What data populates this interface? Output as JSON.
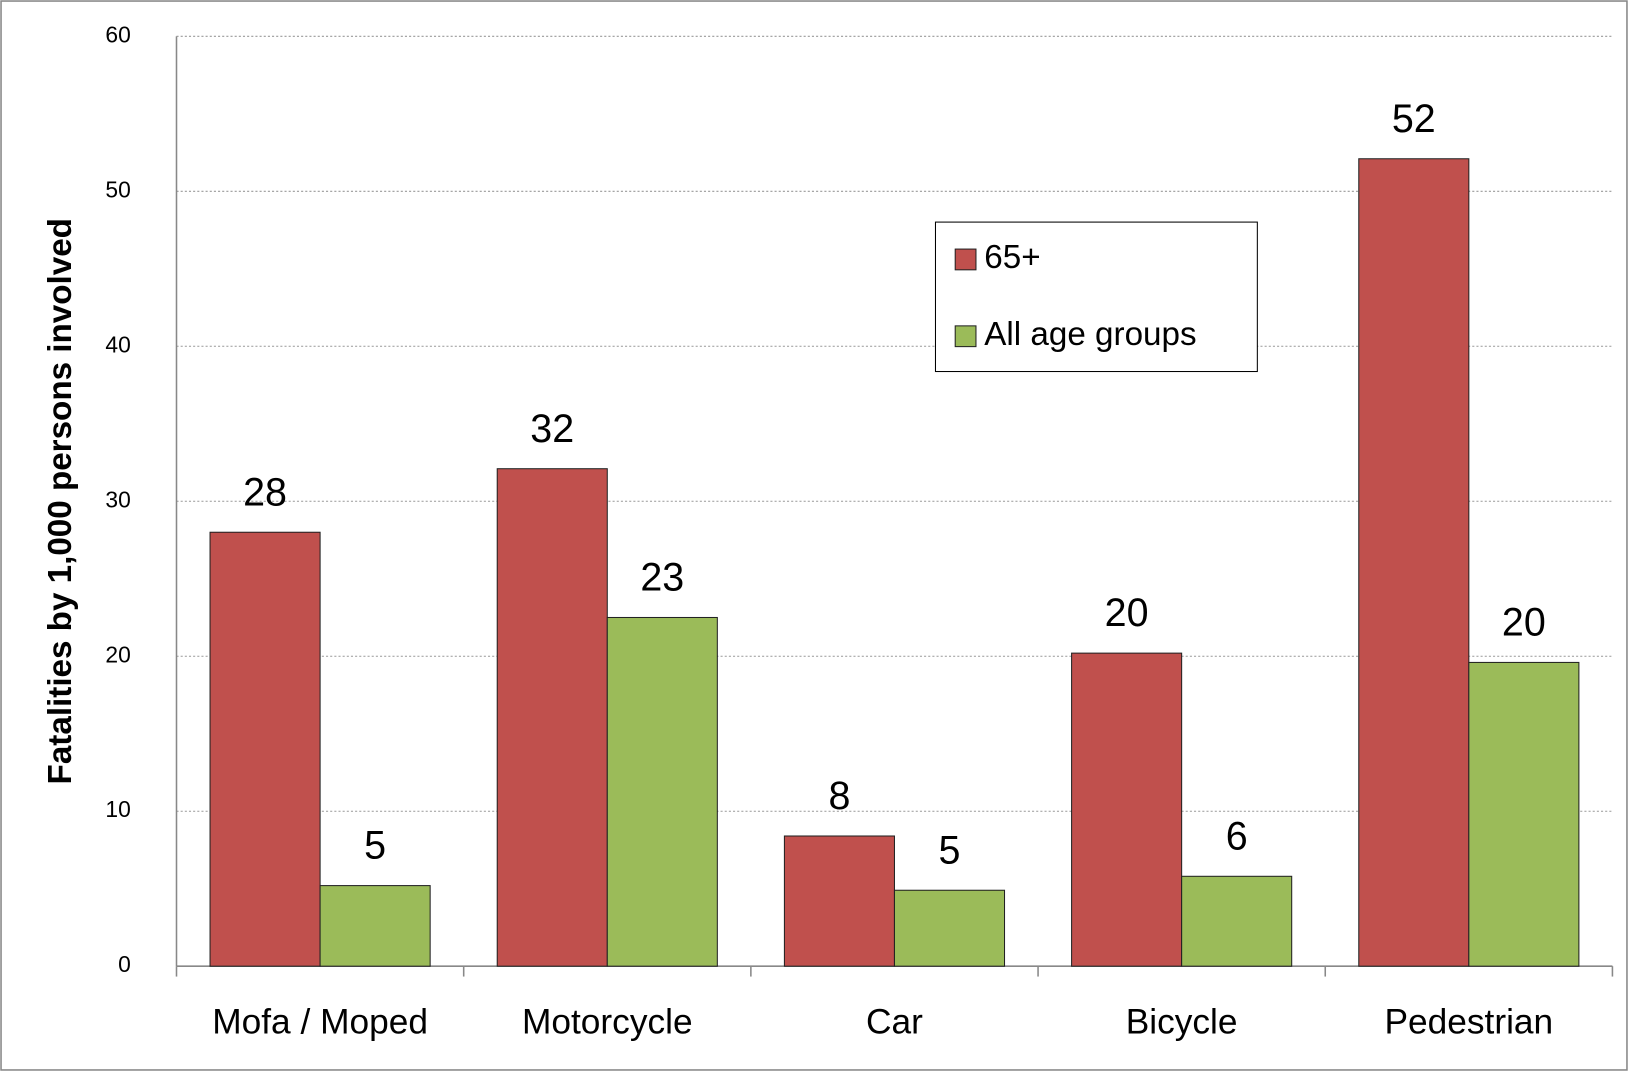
{
  "chart_data": {
    "type": "bar",
    "y_axis_label": "Fatalities by 1,000 persons involved",
    "categories": [
      "Mofa / Moped",
      "Motorcycle",
      "Car",
      "Bicycle",
      "Pedestrian"
    ],
    "series": [
      {
        "name": "65+",
        "color": "#c0504d",
        "values": [
          28,
          32.1,
          8.4,
          20.2,
          52.1
        ],
        "value_labels": [
          "28",
          "32",
          "8",
          "20",
          "52"
        ]
      },
      {
        "name": "All age groups",
        "color": "#9bbb59",
        "values": [
          5.2,
          22.5,
          4.9,
          5.8,
          19.6
        ],
        "value_labels": [
          "5",
          "23",
          "5",
          "6",
          "20"
        ]
      }
    ],
    "ylim": [
      0,
      60
    ],
    "yticks": [
      0,
      10,
      20,
      30,
      40,
      50,
      60
    ],
    "grid": true,
    "legend": "upper right"
  }
}
